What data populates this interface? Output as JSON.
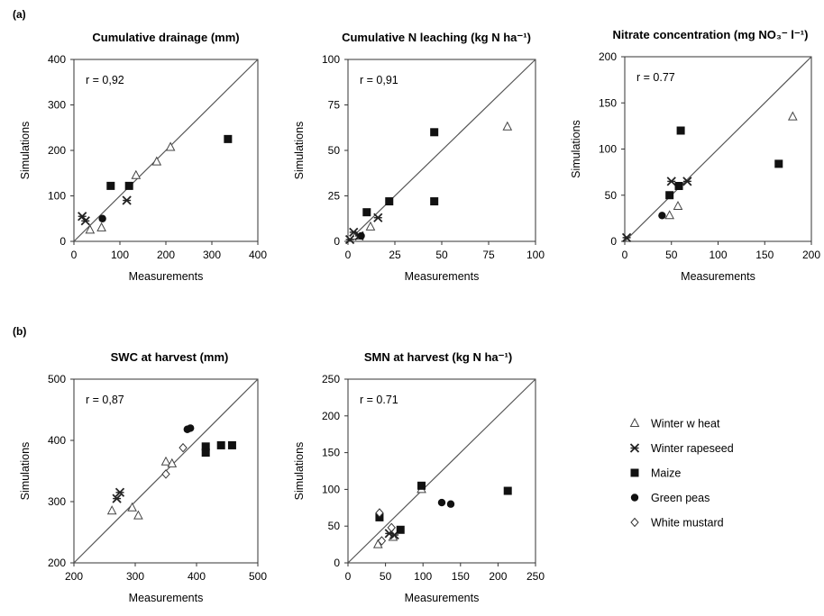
{
  "sections": {
    "a": "(a)",
    "b": "(b)"
  },
  "legend": [
    {
      "name": "Winter w heat",
      "marker": "triangle-open"
    },
    {
      "name": "Winter rapeseed",
      "marker": "star-x"
    },
    {
      "name": "Maize",
      "marker": "square-filled"
    },
    {
      "name": "Green peas",
      "marker": "circle-filled"
    },
    {
      "name": "White mustard",
      "marker": "diamond-open"
    }
  ],
  "chart_data": [
    {
      "type": "scatter",
      "title": "Cumulative drainage (mm)",
      "xlabel": "Measurements",
      "ylabel": "Simulations",
      "xlim": [
        0,
        400
      ],
      "ylim": [
        0,
        400
      ],
      "xticks": [
        0,
        100,
        200,
        300,
        400
      ],
      "yticks": [
        0,
        100,
        200,
        300,
        400
      ],
      "r": "r = 0,92",
      "identity_line": true,
      "series": [
        {
          "name": "Winter w heat",
          "points": [
            [
              35,
              25
            ],
            [
              60,
              30
            ],
            [
              135,
              145
            ],
            [
              180,
              175
            ],
            [
              210,
              207
            ]
          ]
        },
        {
          "name": "Winter rapeseed",
          "points": [
            [
              18,
              55
            ],
            [
              25,
              45
            ],
            [
              115,
              90
            ]
          ]
        },
        {
          "name": "Maize",
          "points": [
            [
              80,
              122
            ],
            [
              120,
              122
            ],
            [
              335,
              225
            ]
          ]
        },
        {
          "name": "Green peas",
          "points": [
            [
              62,
              50
            ]
          ]
        },
        {
          "name": "White mustard",
          "points": []
        }
      ]
    },
    {
      "type": "scatter",
      "title": "Cumulative N leaching (kg N ha⁻¹)",
      "xlabel": "Measurements",
      "ylabel": "Simulations",
      "xlim": [
        0,
        100
      ],
      "ylim": [
        0,
        100
      ],
      "xticks": [
        0,
        25,
        50,
        75,
        100
      ],
      "yticks": [
        0,
        25,
        50,
        75,
        100
      ],
      "r": "r = 0,91",
      "identity_line": true,
      "series": [
        {
          "name": "Winter w heat",
          "points": [
            [
              4,
              3
            ],
            [
              12,
              8
            ],
            [
              85,
              63
            ]
          ]
        },
        {
          "name": "Winter rapeseed",
          "points": [
            [
              1,
              1
            ],
            [
              3,
              5
            ],
            [
              6,
              3
            ],
            [
              16,
              13
            ]
          ]
        },
        {
          "name": "Maize",
          "points": [
            [
              10,
              16
            ],
            [
              22,
              22
            ],
            [
              46,
              22
            ],
            [
              46,
              60
            ]
          ]
        },
        {
          "name": "Green peas",
          "points": [
            [
              7,
              3
            ]
          ]
        },
        {
          "name": "White mustard",
          "points": []
        }
      ]
    },
    {
      "type": "scatter",
      "title": "Nitrate concentration (mg NO₃⁻ l⁻¹)",
      "xlabel": "Measurements",
      "ylabel": "Simulations",
      "xlim": [
        0,
        200
      ],
      "ylim": [
        0,
        200
      ],
      "xticks": [
        0,
        50,
        100,
        150,
        200
      ],
      "yticks": [
        0,
        50,
        100,
        150,
        200
      ],
      "r": "r = 0.77",
      "identity_line": true,
      "series": [
        {
          "name": "Winter w heat",
          "points": [
            [
              48,
              28
            ],
            [
              57,
              38
            ],
            [
              180,
              135
            ]
          ]
        },
        {
          "name": "Winter rapeseed",
          "points": [
            [
              2,
              4
            ],
            [
              50,
              65
            ],
            [
              67,
              65
            ]
          ]
        },
        {
          "name": "Maize",
          "points": [
            [
              48,
              50
            ],
            [
              58,
              60
            ],
            [
              60,
              120
            ],
            [
              165,
              84
            ]
          ]
        },
        {
          "name": "Green peas",
          "points": [
            [
              40,
              28
            ]
          ]
        },
        {
          "name": "White mustard",
          "points": []
        }
      ]
    },
    {
      "type": "scatter",
      "title": "SWC at harvest (mm)",
      "xlabel": "Measurements",
      "ylabel": "Simulations",
      "xlim": [
        200,
        500
      ],
      "ylim": [
        200,
        500
      ],
      "xticks": [
        200,
        300,
        400,
        500
      ],
      "yticks": [
        200,
        300,
        400,
        500
      ],
      "r": "r = 0,87",
      "identity_line": true,
      "series": [
        {
          "name": "Winter w heat",
          "points": [
            [
              262,
              285
            ],
            [
              295,
              290
            ],
            [
              305,
              277
            ],
            [
              350,
              365
            ],
            [
              360,
              362
            ]
          ]
        },
        {
          "name": "Winter rapeseed",
          "points": [
            [
              270,
              305
            ],
            [
              275,
              315
            ]
          ]
        },
        {
          "name": "Maize",
          "points": [
            [
              415,
              390
            ],
            [
              415,
              380
            ],
            [
              440,
              392
            ],
            [
              458,
              392
            ]
          ]
        },
        {
          "name": "Green peas",
          "points": [
            [
              385,
              418
            ],
            [
              390,
              420
            ]
          ]
        },
        {
          "name": "White mustard",
          "points": [
            [
              350,
              345
            ],
            [
              378,
              388
            ]
          ]
        }
      ]
    },
    {
      "type": "scatter",
      "title": "SMN at harvest (kg N ha⁻¹)",
      "xlabel": "Measurements",
      "ylabel": "Simulations",
      "xlim": [
        0,
        250
      ],
      "ylim": [
        0,
        250
      ],
      "xticks": [
        0,
        50,
        100,
        150,
        200,
        250
      ],
      "yticks": [
        0,
        50,
        100,
        150,
        200,
        250
      ],
      "r": "r = 0.71",
      "identity_line": true,
      "series": [
        {
          "name": "Winter w heat",
          "points": [
            [
              40,
              25
            ],
            [
              60,
              35
            ],
            [
              98,
              100
            ]
          ]
        },
        {
          "name": "Winter rapeseed",
          "points": [
            [
              55,
              40
            ],
            [
              62,
              38
            ]
          ]
        },
        {
          "name": "Maize",
          "points": [
            [
              42,
              62
            ],
            [
              70,
              45
            ],
            [
              98,
              105
            ],
            [
              213,
              98
            ]
          ]
        },
        {
          "name": "Green peas",
          "points": [
            [
              125,
              82
            ],
            [
              137,
              80
            ]
          ]
        },
        {
          "name": "White mustard",
          "points": [
            [
              42,
              68
            ],
            [
              45,
              30
            ],
            [
              58,
              48
            ]
          ]
        }
      ]
    }
  ]
}
